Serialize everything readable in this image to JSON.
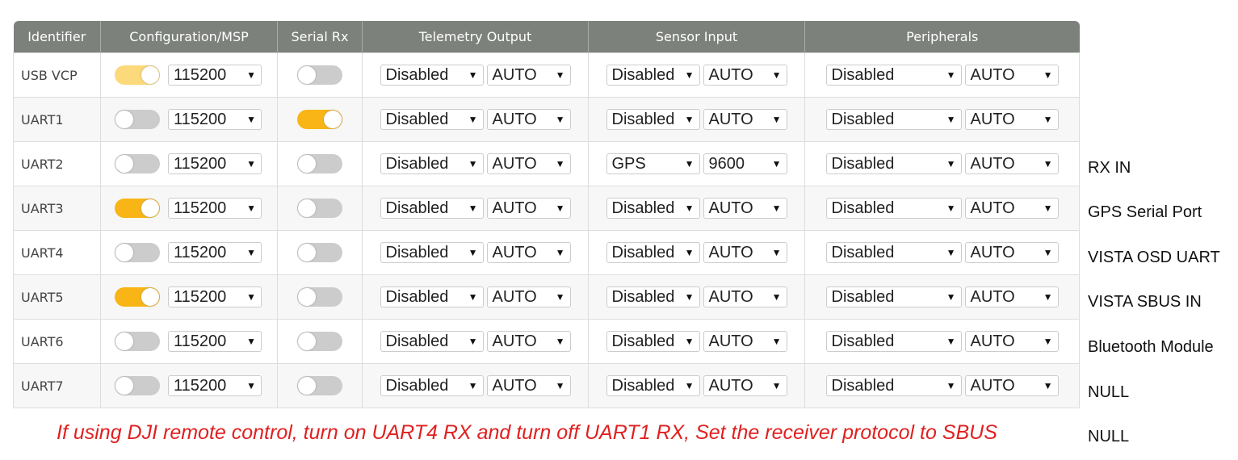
{
  "headers": [
    "Identifier",
    "Configuration/MSP",
    "Serial Rx",
    "Telemetry Output",
    "Sensor Input",
    "Peripherals"
  ],
  "rows": [
    {
      "id": "USB VCP",
      "msp": "on-disabled",
      "baud": "115200",
      "rx": false,
      "tel": "Disabled",
      "telb": "AUTO",
      "sen": "Disabled",
      "senb": "AUTO",
      "per": "Disabled",
      "perb": "AUTO",
      "note": ""
    },
    {
      "id": "UART1",
      "msp": "off",
      "baud": "115200",
      "rx": true,
      "tel": "Disabled",
      "telb": "AUTO",
      "sen": "Disabled",
      "senb": "AUTO",
      "per": "Disabled",
      "perb": "AUTO",
      "note": "RX IN"
    },
    {
      "id": "UART2",
      "msp": "off",
      "baud": "115200",
      "rx": false,
      "tel": "Disabled",
      "telb": "AUTO",
      "sen": "GPS",
      "senb": "9600",
      "per": "Disabled",
      "perb": "AUTO",
      "note": "GPS Serial Port"
    },
    {
      "id": "UART3",
      "msp": "on",
      "baud": "115200",
      "rx": false,
      "tel": "Disabled",
      "telb": "AUTO",
      "sen": "Disabled",
      "senb": "AUTO",
      "per": "Disabled",
      "perb": "AUTO",
      "note": "VISTA OSD UART"
    },
    {
      "id": "UART4",
      "msp": "off",
      "baud": "115200",
      "rx": false,
      "tel": "Disabled",
      "telb": "AUTO",
      "sen": "Disabled",
      "senb": "AUTO",
      "per": "Disabled",
      "perb": "AUTO",
      "note": "VISTA SBUS IN"
    },
    {
      "id": "UART5",
      "msp": "on",
      "baud": "115200",
      "rx": false,
      "tel": "Disabled",
      "telb": "AUTO",
      "sen": "Disabled",
      "senb": "AUTO",
      "per": "Disabled",
      "perb": "AUTO",
      "note": "Bluetooth Module"
    },
    {
      "id": "UART6",
      "msp": "off",
      "baud": "115200",
      "rx": false,
      "tel": "Disabled",
      "telb": "AUTO",
      "sen": "Disabled",
      "senb": "AUTO",
      "per": "Disabled",
      "perb": "AUTO",
      "note": "NULL"
    },
    {
      "id": "UART7",
      "msp": "off",
      "baud": "115200",
      "rx": false,
      "tel": "Disabled",
      "telb": "AUTO",
      "sen": "Disabled",
      "senb": "AUTO",
      "per": "Disabled",
      "perb": "AUTO",
      "note": "NULL"
    }
  ],
  "footnote": "If using DJI remote control, turn on UART4 RX and turn off UART1 RX, Set the receiver protocol to SBUS",
  "colors": {
    "accent": "#f8b515",
    "header": "#7d817c",
    "footnote": "#e02020"
  }
}
